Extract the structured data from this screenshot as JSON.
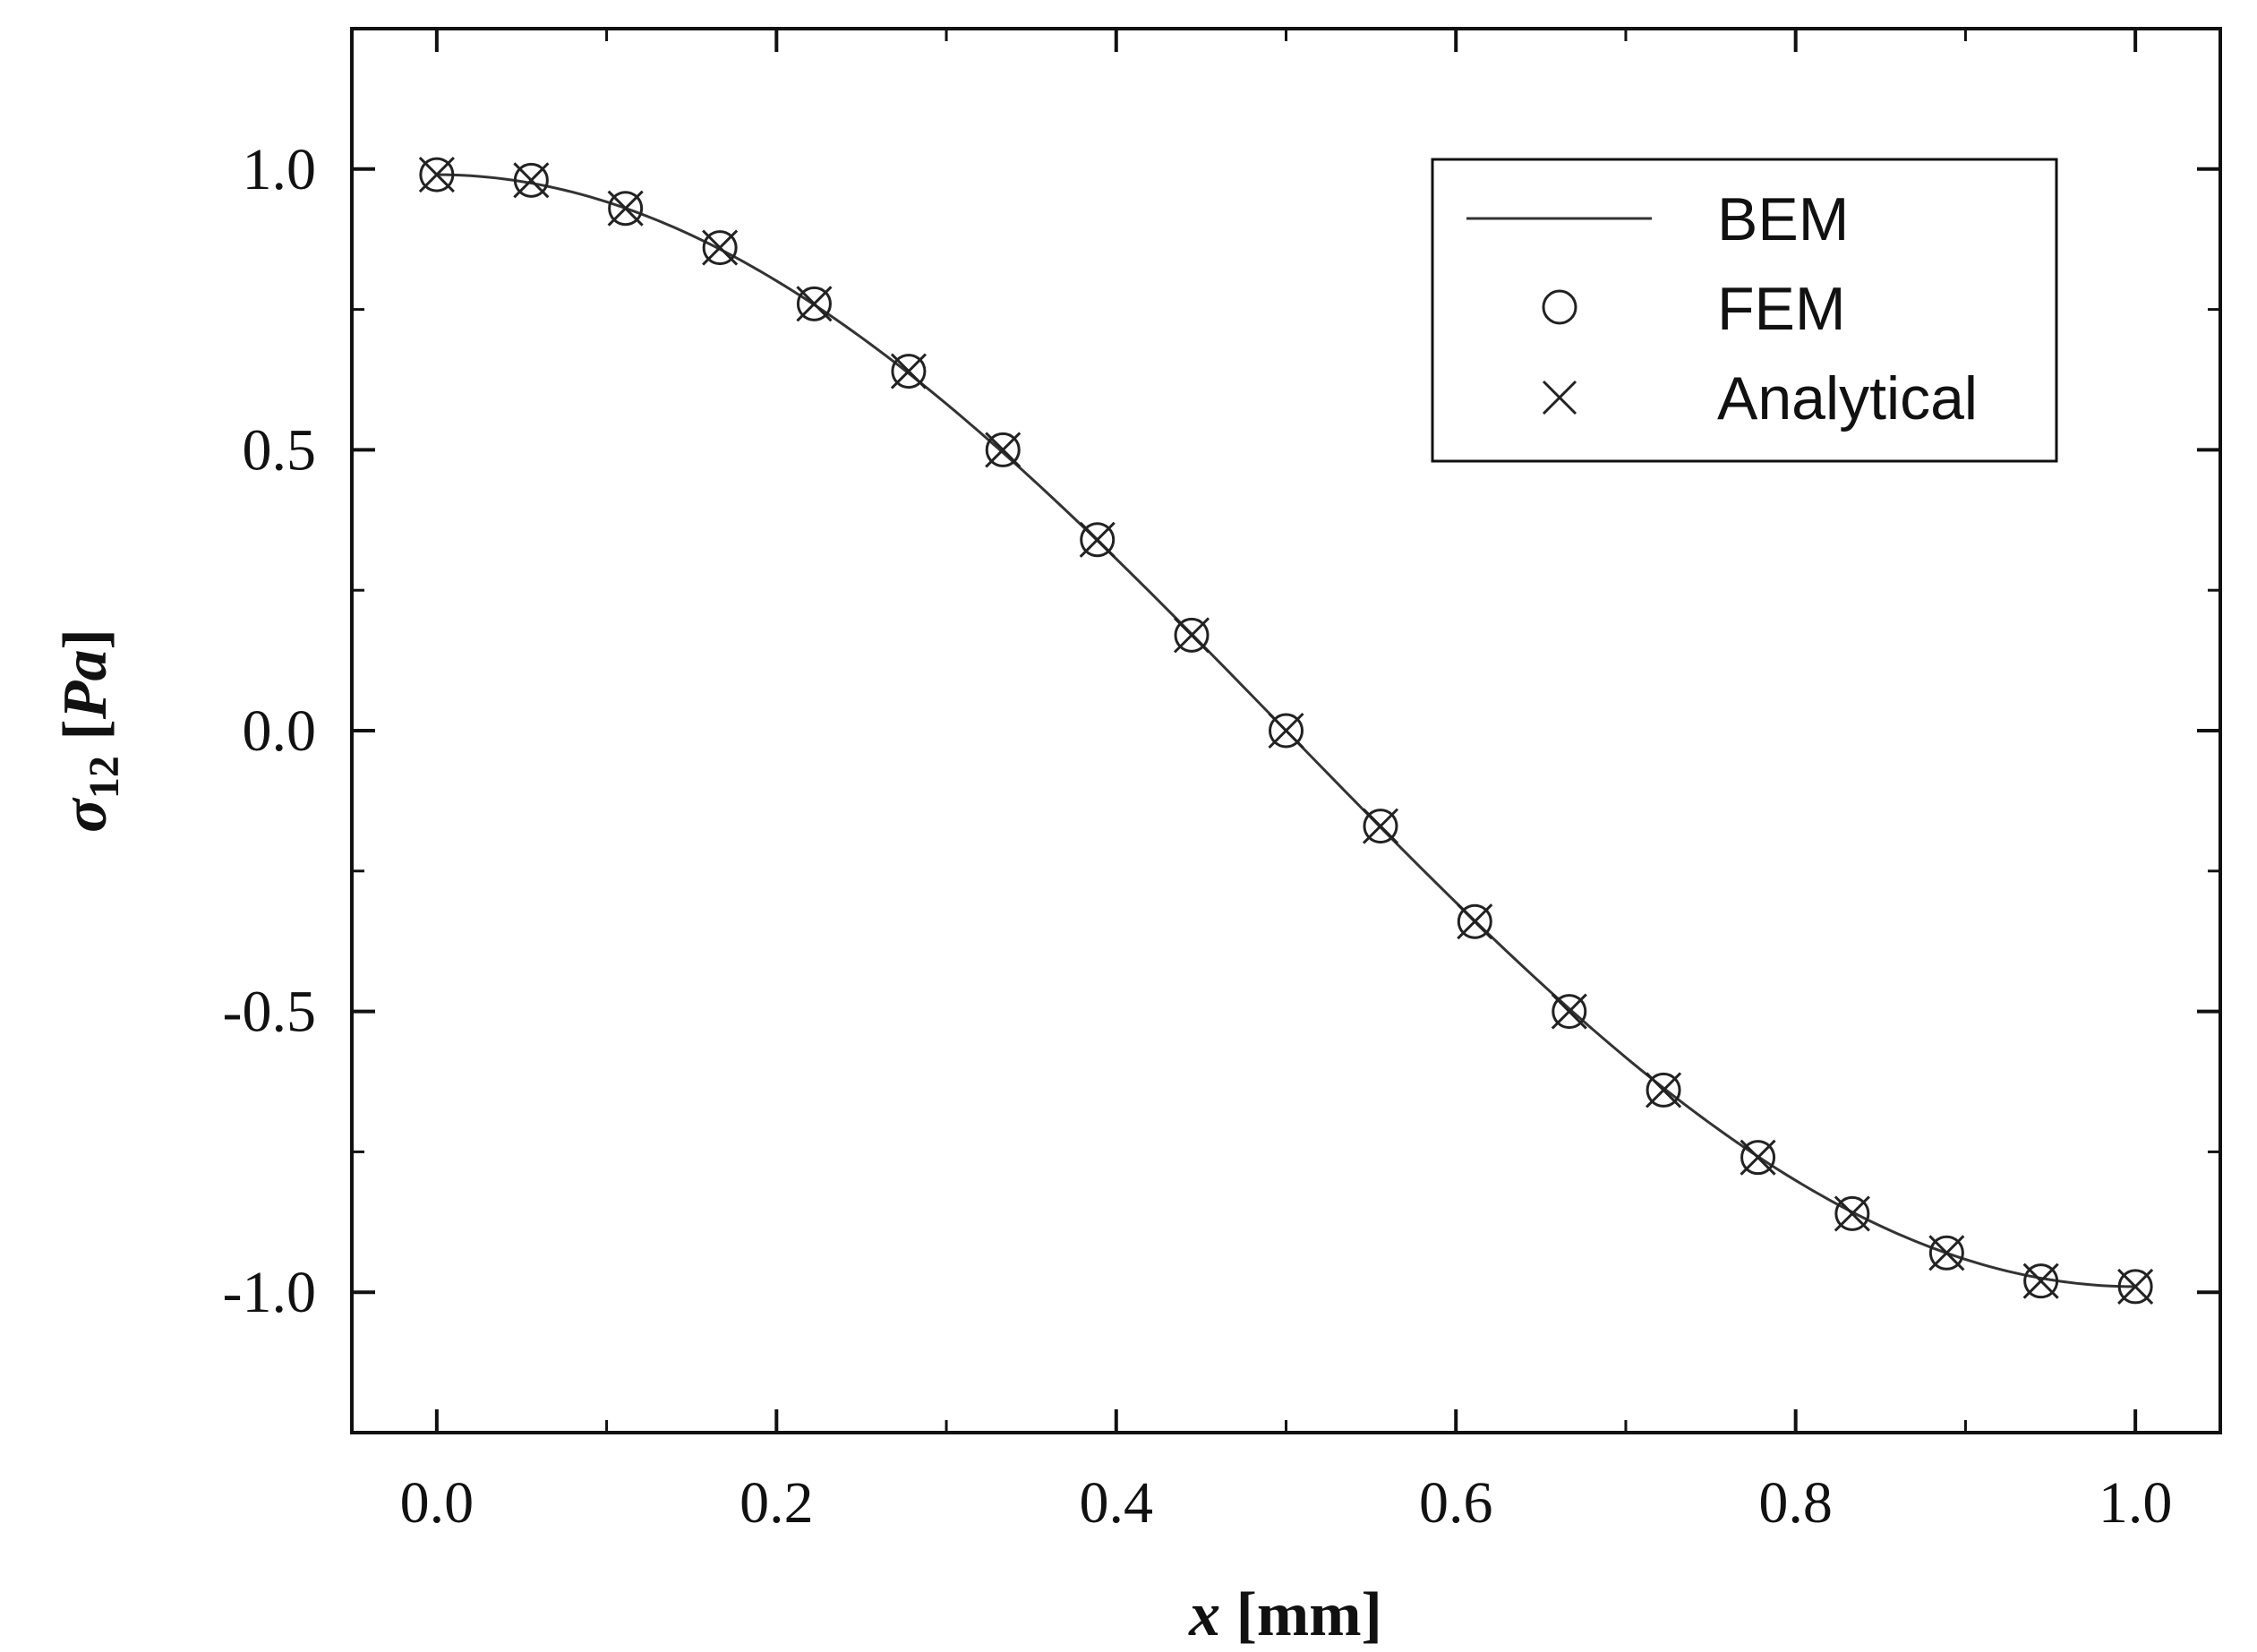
{
  "chart_data": {
    "type": "line",
    "title": "",
    "xlabel_var": "x",
    "xlabel_unit": " [mm]",
    "ylabel_var": "σ",
    "ylabel_sub": "12",
    "ylabel_unit_open": " [",
    "ylabel_unit": "Pa",
    "ylabel_unit_close": "]",
    "xlim": [
      -0.05,
      1.05
    ],
    "ylim": [
      -1.25,
      1.25
    ],
    "x_ticks": [
      0.0,
      0.2,
      0.4,
      0.6,
      0.8,
      1.0
    ],
    "x_tick_labels": [
      "0.0",
      "0.2",
      "0.4",
      "0.6",
      "0.8",
      "1.0"
    ],
    "y_ticks": [
      1.0,
      0.5,
      0.0,
      -0.5,
      -1.0
    ],
    "y_tick_labels": [
      "1.0",
      "0.5",
      "0.0",
      "-0.5",
      "-1.0"
    ],
    "grid": false,
    "legend_position": "top-right",
    "x": [
      0.0,
      0.0556,
      0.1111,
      0.1667,
      0.2222,
      0.2778,
      0.3333,
      0.3889,
      0.4444,
      0.5,
      0.5556,
      0.6111,
      0.6667,
      0.7222,
      0.7778,
      0.8333,
      0.8889,
      0.9444,
      1.0
    ],
    "series": [
      {
        "name": "BEM",
        "style": "line",
        "values": [
          0.99,
          0.98,
          0.93,
          0.86,
          0.76,
          0.64,
          0.5,
          0.34,
          0.17,
          0.0,
          -0.17,
          -0.34,
          -0.5,
          -0.64,
          -0.76,
          -0.86,
          -0.93,
          -0.98,
          -0.99
        ]
      },
      {
        "name": "FEM",
        "style": "circle",
        "values": [
          0.99,
          0.98,
          0.93,
          0.86,
          0.76,
          0.64,
          0.5,
          0.34,
          0.17,
          0.0,
          -0.17,
          -0.34,
          -0.5,
          -0.64,
          -0.76,
          -0.86,
          -0.93,
          -0.98,
          -0.99
        ]
      },
      {
        "name": "Analytical",
        "style": "cross",
        "values": [
          0.99,
          0.98,
          0.93,
          0.86,
          0.76,
          0.64,
          0.5,
          0.34,
          0.17,
          0.0,
          -0.17,
          -0.34,
          -0.5,
          -0.64,
          -0.76,
          -0.86,
          -0.93,
          -0.98,
          -0.99
        ]
      }
    ],
    "colors": {
      "line": "#333333",
      "marker": "#222222",
      "axis": "#111111"
    }
  }
}
